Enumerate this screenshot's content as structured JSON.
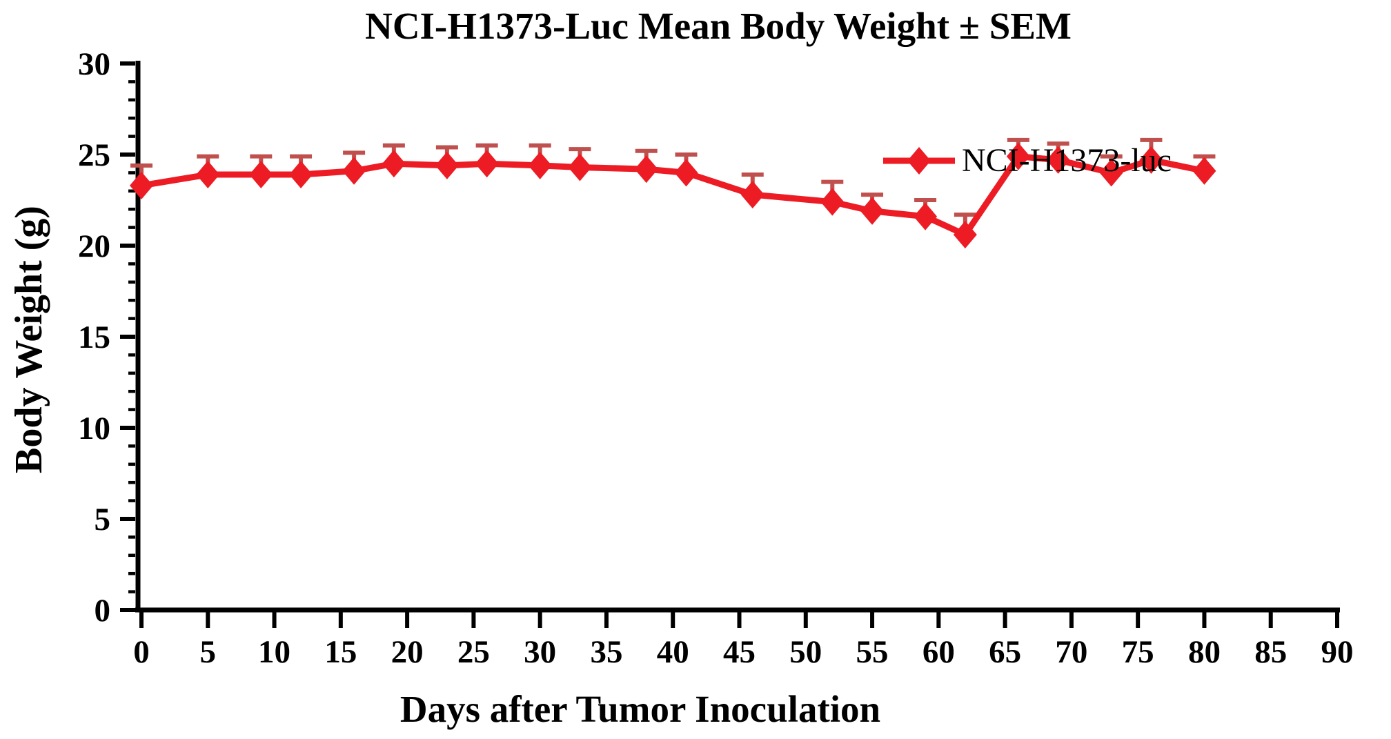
{
  "title": "NCI-H1373-Luc Mean Body Weight ± SEM",
  "x_axis_label": "Days after Tumor Inoculation",
  "y_axis_label": "Body Weight (g)",
  "legend": {
    "label": "NCI-H1373-luc"
  },
  "colors": {
    "series": "#ed1c24",
    "error_bar": "#c0504d",
    "axis": "#000000",
    "background": "#ffffff"
  },
  "chart_data": {
    "type": "line",
    "title": "NCI-H1373-Luc Mean Body Weight ± SEM",
    "xlabel": "Days after Tumor Inoculation",
    "ylabel": "Body Weight (g)",
    "xlim": [
      0,
      90
    ],
    "ylim": [
      0,
      30
    ],
    "x_tick_interval": 5,
    "y_tick_interval": 5,
    "y_minor_tick_interval": 1,
    "x_tick_labels": [
      "0",
      "5",
      "10",
      "15",
      "20",
      "25",
      "30",
      "35",
      "40",
      "45",
      "50",
      "55",
      "60",
      "65",
      "70",
      "75",
      "80",
      "85",
      "90"
    ],
    "y_tick_labels": [
      "0",
      "5",
      "10",
      "15",
      "20",
      "25",
      "30"
    ],
    "grid": false,
    "legend_position": "inside-top-right",
    "error_bars": "upper-sem-only",
    "marker": "diamond",
    "series": [
      {
        "name": "NCI-H1373-luc",
        "color": "#ed1c24",
        "error_bar_color": "#c0504d",
        "points": [
          {
            "day": 0,
            "weight": 23.3,
            "sem": 1.1
          },
          {
            "day": 5,
            "weight": 23.9,
            "sem": 1.0
          },
          {
            "day": 9,
            "weight": 23.9,
            "sem": 1.0
          },
          {
            "day": 12,
            "weight": 23.9,
            "sem": 1.0
          },
          {
            "day": 16,
            "weight": 24.1,
            "sem": 1.0
          },
          {
            "day": 19,
            "weight": 24.5,
            "sem": 1.0
          },
          {
            "day": 23,
            "weight": 24.4,
            "sem": 1.0
          },
          {
            "day": 26,
            "weight": 24.5,
            "sem": 1.0
          },
          {
            "day": 30,
            "weight": 24.4,
            "sem": 1.1
          },
          {
            "day": 33,
            "weight": 24.3,
            "sem": 1.0
          },
          {
            "day": 38,
            "weight": 24.2,
            "sem": 1.0
          },
          {
            "day": 41,
            "weight": 24.0,
            "sem": 1.0
          },
          {
            "day": 46,
            "weight": 22.8,
            "sem": 1.1
          },
          {
            "day": 52,
            "weight": 22.4,
            "sem": 1.1
          },
          {
            "day": 55,
            "weight": 21.9,
            "sem": 0.9
          },
          {
            "day": 59,
            "weight": 21.6,
            "sem": 0.9
          },
          {
            "day": 62,
            "weight": 20.6,
            "sem": 1.1
          },
          {
            "day": 66,
            "weight": 24.9,
            "sem": 0.9
          },
          {
            "day": 69,
            "weight": 24.7,
            "sem": 0.9
          },
          {
            "day": 73,
            "weight": 24.0,
            "sem": 0.9
          },
          {
            "day": 76,
            "weight": 24.7,
            "sem": 1.1
          },
          {
            "day": 80,
            "weight": 24.1,
            "sem": 0.8
          }
        ]
      }
    ]
  }
}
